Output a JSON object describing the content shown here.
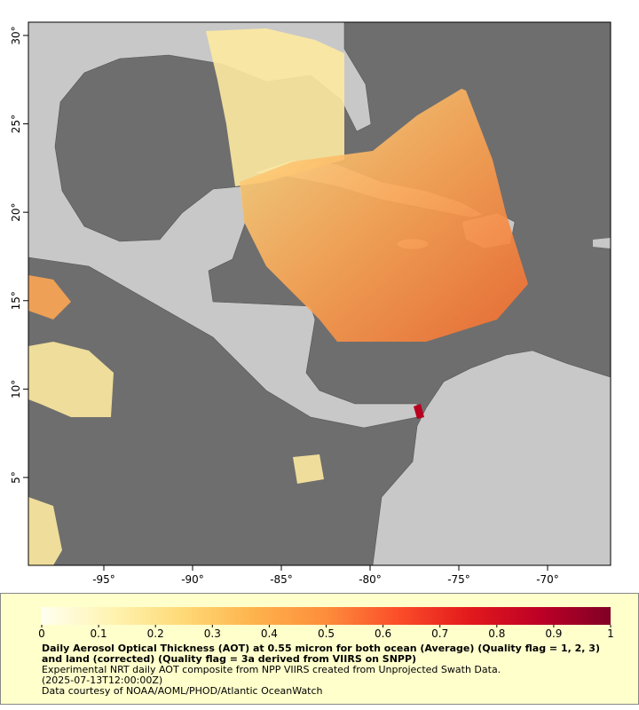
{
  "map": {
    "xlim": [
      -99.25,
      -66.45
    ],
    "ylim": [
      0.03,
      30.75
    ],
    "xticks": [
      {
        "value": -95,
        "label": "-95°"
      },
      {
        "value": -90,
        "label": "-90°"
      },
      {
        "value": -85,
        "label": "-85°"
      },
      {
        "value": -80,
        "label": "-80°"
      },
      {
        "value": -75,
        "label": "-75°"
      },
      {
        "value": -70,
        "label": "-70°"
      }
    ],
    "yticks": [
      {
        "value": 5,
        "label": "5°"
      },
      {
        "value": 10,
        "label": "10°"
      },
      {
        "value": 15,
        "label": "15°"
      },
      {
        "value": 20,
        "label": "20°"
      },
      {
        "value": 25,
        "label": "25°"
      },
      {
        "value": 30,
        "label": "30°"
      }
    ]
  },
  "colorbar": {
    "range": [
      0,
      1
    ],
    "ticks": [
      0,
      0.1,
      0.2,
      0.3,
      0.4,
      0.5,
      0.6,
      0.7,
      0.8,
      0.9,
      1
    ],
    "colors": [
      "#fffff0",
      "#fff3b0",
      "#fed976",
      "#feb24c",
      "#fd8d3c",
      "#fc4e2a",
      "#e31a1c",
      "#bd0026",
      "#800026"
    ]
  },
  "caption": {
    "title": "Daily Aerosol Optical Thickness (AOT) at 0.55 micron for both ocean (Average) (Quality flag = 1, 2, 3) and land (corrected) (Quality flag = 3a derived from VIIRS on SNPP)",
    "lines": [
      "Experimental NRT daily AOT composite from NPP VIIRS created from Unprojected Swath Data.",
      "(2025-07-13T12:00:00Z)",
      "Data courtesy of NOAA/AOML/PHOD/Atlantic OceanWatch"
    ]
  }
}
